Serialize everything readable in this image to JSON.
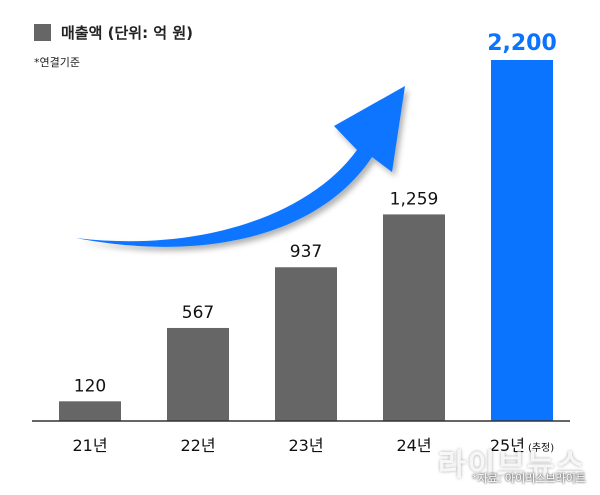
{
  "legend": {
    "label": "매출액 (단위: 억 원)"
  },
  "note": "*연결기준",
  "source": "*자료: 아이리스브라이트",
  "watermark": "라이브뉴스",
  "colors": {
    "bar": "#666666",
    "highlight": "#0A74FF",
    "arrow": "#0A74FF",
    "baseline": "#333333"
  },
  "chart_data": {
    "type": "bar",
    "categories": [
      "21년",
      "22년",
      "23년",
      "24년",
      "25년"
    ],
    "category_notes": [
      "",
      "",
      "",
      "",
      "(추정)"
    ],
    "values": [
      120,
      567,
      937,
      1259,
      2200
    ],
    "value_labels": [
      "120",
      "567",
      "937",
      "1,259",
      "2,200"
    ],
    "highlight_index": 4,
    "ylim": [
      0,
      2200
    ],
    "series": [
      {
        "name": "매출액 (단위: 억 원)",
        "values": [
          120,
          567,
          937,
          1259,
          2200
        ]
      }
    ],
    "grid": false,
    "legend_position": "top-left"
  }
}
